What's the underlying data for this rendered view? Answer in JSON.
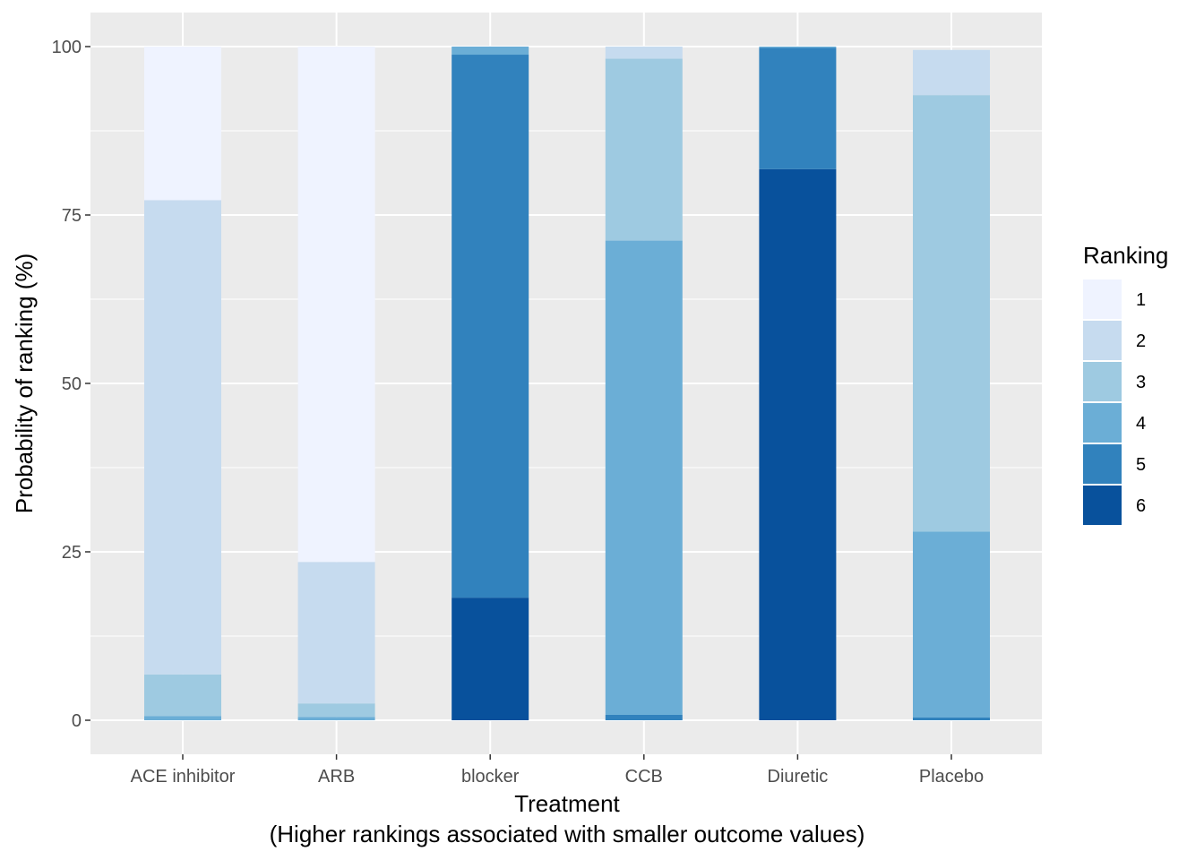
{
  "chart_data": {
    "type": "bar",
    "stacked": true,
    "categories": [
      "ACE inhibitor",
      "ARB",
      "blocker",
      "CCB",
      "Diuretic",
      "Placebo"
    ],
    "series": [
      {
        "name": "6",
        "color": "#08519c",
        "values": [
          0,
          0,
          18.2,
          0,
          81.8,
          0
        ]
      },
      {
        "name": "5",
        "color": "#3182bd",
        "values": [
          0,
          0,
          80.6,
          0.8,
          18.0,
          0.4
        ]
      },
      {
        "name": "4",
        "color": "#6baed6",
        "values": [
          0.6,
          0.5,
          1.2,
          70.4,
          0.2,
          27.6
        ]
      },
      {
        "name": "3",
        "color": "#9ecae1",
        "values": [
          6.2,
          2.0,
          0,
          27.0,
          0,
          64.8
        ]
      },
      {
        "name": "2",
        "color": "#c6dbef",
        "values": [
          70.4,
          21.0,
          0,
          1.8,
          0,
          6.7
        ]
      },
      {
        "name": "1",
        "color": "#eff3ff",
        "values": [
          22.8,
          76.5,
          0,
          0,
          0,
          0
        ]
      }
    ],
    "ylim": [
      0,
      100
    ],
    "yticks": [
      0,
      25,
      50,
      75,
      100
    ],
    "xlabel": "Treatment",
    "xlabel_sub": "(Higher rankings associated with smaller outcome values)",
    "ylabel": "Probability of ranking (%)",
    "legend": {
      "title": "Ranking",
      "position": "right",
      "entries": [
        {
          "label": "1",
          "color": "#eff3ff"
        },
        {
          "label": "2",
          "color": "#c6dbef"
        },
        {
          "label": "3",
          "color": "#9ecae1"
        },
        {
          "label": "4",
          "color": "#6baed6"
        },
        {
          "label": "5",
          "color": "#3182bd"
        },
        {
          "label": "6",
          "color": "#08519c"
        }
      ]
    },
    "grid": true,
    "panel_background": "#ebebeb"
  }
}
